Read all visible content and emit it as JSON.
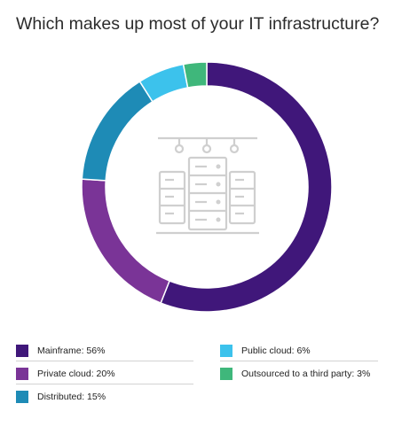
{
  "title": "Which makes up most of your IT infrastructure?",
  "colors": {
    "mainframe": "#40177a",
    "private_cloud": "#7a3497",
    "distributed": "#1e8bb6",
    "public_cloud": "#3cc2ec",
    "outsourced": "#3fb77b",
    "icon": "#cfcfcf"
  },
  "center_icon": "server-rack-icon",
  "legend": [
    {
      "label": "Mainframe: 56%",
      "color": "#40177a"
    },
    {
      "label": "Private cloud: 20%",
      "color": "#7a3497"
    },
    {
      "label": "Distributed: 15%",
      "color": "#1e8bb6"
    },
    {
      "label": "Public cloud: 6%",
      "color": "#3cc2ec"
    },
    {
      "label": "Outsourced to a third party: 3%",
      "color": "#3fb77b"
    }
  ],
  "chart_data": {
    "type": "pie",
    "style": "donut",
    "title": "Which makes up most of your IT infrastructure?",
    "categories": [
      "Mainframe",
      "Private cloud",
      "Distributed",
      "Public cloud",
      "Outsourced to a third party"
    ],
    "values": [
      56,
      20,
      15,
      6,
      3
    ],
    "unit": "%",
    "colors": [
      "#40177a",
      "#7a3497",
      "#1e8bb6",
      "#3cc2ec",
      "#3fb77b"
    ],
    "legend_position": "bottom"
  }
}
